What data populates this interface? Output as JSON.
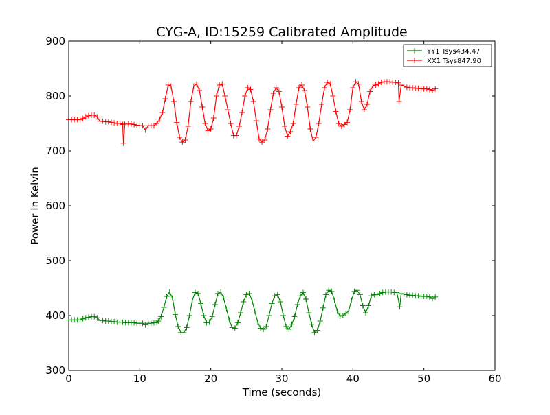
{
  "chart_data": {
    "type": "line",
    "title": "CYG-A, ID:15259 Calibrated Amplitude",
    "xlabel": "Time (seconds)",
    "ylabel": "Power in Kelvin",
    "xlim": [
      0,
      60
    ],
    "ylim": [
      300,
      900
    ],
    "xticks": [
      "0",
      "10",
      "20",
      "30",
      "40",
      "50",
      "60"
    ],
    "yticks": [
      "300",
      "400",
      "500",
      "600",
      "700",
      "800",
      "900"
    ],
    "grid": false,
    "legend_position": "top-right",
    "marker": "+",
    "series": [
      {
        "name": "YY1 Tsys434.47",
        "color": "#008000",
        "points": [
          [
            0,
            392
          ],
          [
            0.4,
            392
          ],
          [
            0.8,
            392
          ],
          [
            1.2,
            392
          ],
          [
            1.6,
            392
          ],
          [
            2.0,
            394
          ],
          [
            2.4,
            396
          ],
          [
            2.8,
            397
          ],
          [
            3.2,
            398
          ],
          [
            3.6,
            398
          ],
          [
            4.0,
            396
          ],
          [
            4.4,
            391
          ],
          [
            4.8,
            391
          ],
          [
            5.2,
            390
          ],
          [
            5.6,
            390
          ],
          [
            6.0,
            389
          ],
          [
            6.4,
            389
          ],
          [
            6.8,
            388
          ],
          [
            7.2,
            388
          ],
          [
            7.6,
            388
          ],
          [
            8.0,
            387
          ],
          [
            8.4,
            387
          ],
          [
            8.8,
            387
          ],
          [
            9.2,
            387
          ],
          [
            9.6,
            386
          ],
          [
            10.0,
            386
          ],
          [
            10.4,
            386
          ],
          [
            10.8,
            383
          ],
          [
            11.2,
            386
          ],
          [
            11.6,
            386
          ],
          [
            12.0,
            387
          ],
          [
            12.4,
            387
          ],
          [
            12.6,
            390
          ],
          [
            13.0,
            398
          ],
          [
            13.4,
            415
          ],
          [
            13.8,
            435
          ],
          [
            14.2,
            443
          ],
          [
            14.6,
            432
          ],
          [
            15.0,
            402
          ],
          [
            15.4,
            380
          ],
          [
            15.8,
            369
          ],
          [
            16.2,
            369
          ],
          [
            16.6,
            378
          ],
          [
            17.0,
            400
          ],
          [
            17.4,
            428
          ],
          [
            17.8,
            442
          ],
          [
            18.2,
            440
          ],
          [
            18.6,
            422
          ],
          [
            19.0,
            400
          ],
          [
            19.4,
            387
          ],
          [
            19.8,
            388
          ],
          [
            20.2,
            398
          ],
          [
            20.6,
            420
          ],
          [
            21.0,
            440
          ],
          [
            21.4,
            443
          ],
          [
            21.8,
            432
          ],
          [
            22.2,
            412
          ],
          [
            22.6,
            392
          ],
          [
            23.0,
            378
          ],
          [
            23.4,
            377
          ],
          [
            23.8,
            387
          ],
          [
            24.2,
            405
          ],
          [
            24.6,
            425
          ],
          [
            25.0,
            438
          ],
          [
            25.4,
            440
          ],
          [
            25.8,
            428
          ],
          [
            26.2,
            408
          ],
          [
            26.6,
            388
          ],
          [
            27.0,
            377
          ],
          [
            27.4,
            375
          ],
          [
            27.8,
            380
          ],
          [
            28.2,
            400
          ],
          [
            28.6,
            422
          ],
          [
            29.0,
            436
          ],
          [
            29.4,
            438
          ],
          [
            29.8,
            425
          ],
          [
            30.2,
            400
          ],
          [
            30.6,
            380
          ],
          [
            31.0,
            375
          ],
          [
            31.4,
            384
          ],
          [
            31.8,
            398
          ],
          [
            32.2,
            420
          ],
          [
            32.6,
            436
          ],
          [
            33.0,
            442
          ],
          [
            33.4,
            430
          ],
          [
            33.8,
            405
          ],
          [
            34.2,
            384
          ],
          [
            34.6,
            369
          ],
          [
            35.0,
            373
          ],
          [
            35.4,
            390
          ],
          [
            35.8,
            414
          ],
          [
            36.2,
            438
          ],
          [
            36.6,
            446
          ],
          [
            37.0,
            444
          ],
          [
            37.4,
            428
          ],
          [
            37.8,
            408
          ],
          [
            38.2,
            399
          ],
          [
            38.6,
            400
          ],
          [
            39.0,
            404
          ],
          [
            39.4,
            408
          ],
          [
            39.8,
            428
          ],
          [
            40.2,
            444
          ],
          [
            40.6,
            446
          ],
          [
            41.0,
            438
          ],
          [
            41.4,
            418
          ],
          [
            41.8,
            405
          ],
          [
            42.2,
            418
          ],
          [
            42.6,
            436
          ],
          [
            43.0,
            438
          ],
          [
            43.4,
            438
          ],
          [
            43.8,
            440
          ],
          [
            44.2,
            442
          ],
          [
            44.6,
            443
          ],
          [
            45.0,
            443
          ],
          [
            45.4,
            443
          ],
          [
            45.8,
            442
          ],
          [
            46.2,
            442
          ],
          [
            46.6,
            416
          ],
          [
            46.8,
            440
          ],
          [
            47.2,
            439
          ],
          [
            47.6,
            438
          ],
          [
            48.0,
            437
          ],
          [
            48.4,
            437
          ],
          [
            48.8,
            436
          ],
          [
            49.2,
            436
          ],
          [
            49.6,
            435
          ],
          [
            50.0,
            435
          ],
          [
            50.4,
            435
          ],
          [
            50.8,
            434
          ],
          [
            51.2,
            431
          ],
          [
            51.6,
            434
          ]
        ]
      },
      {
        "name": "XX1 Tsys847.90",
        "color": "#ff0000",
        "points": [
          [
            0,
            757
          ],
          [
            0.4,
            757
          ],
          [
            0.8,
            757
          ],
          [
            1.2,
            757
          ],
          [
            1.6,
            757
          ],
          [
            2.0,
            759
          ],
          [
            2.4,
            762
          ],
          [
            2.8,
            764
          ],
          [
            3.2,
            765
          ],
          [
            3.6,
            765
          ],
          [
            4.0,
            762
          ],
          [
            4.4,
            754
          ],
          [
            4.8,
            754
          ],
          [
            5.2,
            753
          ],
          [
            5.6,
            753
          ],
          [
            6.0,
            752
          ],
          [
            6.4,
            751
          ],
          [
            6.8,
            750
          ],
          [
            7.2,
            750
          ],
          [
            7.6,
            748
          ],
          [
            7.7,
            714
          ],
          [
            7.9,
            749
          ],
          [
            8.4,
            749
          ],
          [
            8.8,
            749
          ],
          [
            9.2,
            748
          ],
          [
            9.6,
            747
          ],
          [
            10.0,
            746
          ],
          [
            10.4,
            746
          ],
          [
            10.8,
            738
          ],
          [
            11.2,
            746
          ],
          [
            11.6,
            746
          ],
          [
            12.0,
            746
          ],
          [
            12.4,
            750
          ],
          [
            12.8,
            758
          ],
          [
            13.2,
            770
          ],
          [
            13.6,
            795
          ],
          [
            14.0,
            820
          ],
          [
            14.4,
            818
          ],
          [
            14.8,
            790
          ],
          [
            15.2,
            752
          ],
          [
            15.6,
            725
          ],
          [
            16.0,
            716
          ],
          [
            16.4,
            720
          ],
          [
            16.8,
            745
          ],
          [
            17.2,
            790
          ],
          [
            17.6,
            818
          ],
          [
            18.0,
            822
          ],
          [
            18.4,
            810
          ],
          [
            18.8,
            780
          ],
          [
            19.2,
            750
          ],
          [
            19.6,
            737
          ],
          [
            20.0,
            740
          ],
          [
            20.4,
            760
          ],
          [
            20.8,
            800
          ],
          [
            21.2,
            820
          ],
          [
            21.6,
            822
          ],
          [
            22.0,
            800
          ],
          [
            22.4,
            775
          ],
          [
            22.8,
            750
          ],
          [
            23.2,
            728
          ],
          [
            23.6,
            728
          ],
          [
            24.0,
            745
          ],
          [
            24.4,
            770
          ],
          [
            24.8,
            800
          ],
          [
            25.2,
            815
          ],
          [
            25.6,
            812
          ],
          [
            26.0,
            790
          ],
          [
            26.4,
            755
          ],
          [
            26.8,
            722
          ],
          [
            27.2,
            716
          ],
          [
            27.6,
            720
          ],
          [
            28.0,
            740
          ],
          [
            28.4,
            775
          ],
          [
            28.8,
            805
          ],
          [
            29.2,
            815
          ],
          [
            29.6,
            808
          ],
          [
            30.0,
            780
          ],
          [
            30.4,
            745
          ],
          [
            30.8,
            727
          ],
          [
            31.2,
            735
          ],
          [
            31.6,
            750
          ],
          [
            32.0,
            785
          ],
          [
            32.4,
            815
          ],
          [
            32.8,
            820
          ],
          [
            33.2,
            810
          ],
          [
            33.6,
            780
          ],
          [
            34.0,
            740
          ],
          [
            34.4,
            718
          ],
          [
            34.8,
            725
          ],
          [
            35.2,
            750
          ],
          [
            35.6,
            785
          ],
          [
            36.0,
            815
          ],
          [
            36.4,
            825
          ],
          [
            36.8,
            822
          ],
          [
            37.2,
            800
          ],
          [
            37.6,
            772
          ],
          [
            38.0,
            750
          ],
          [
            38.4,
            745
          ],
          [
            38.8,
            748
          ],
          [
            39.2,
            752
          ],
          [
            39.6,
            775
          ],
          [
            40.0,
            815
          ],
          [
            40.4,
            826
          ],
          [
            40.8,
            822
          ],
          [
            41.2,
            790
          ],
          [
            41.6,
            775
          ],
          [
            42.0,
            785
          ],
          [
            42.4,
            808
          ],
          [
            42.8,
            818
          ],
          [
            43.2,
            820
          ],
          [
            43.6,
            822
          ],
          [
            44.0,
            825
          ],
          [
            44.4,
            826
          ],
          [
            44.8,
            826
          ],
          [
            45.2,
            826
          ],
          [
            45.6,
            825
          ],
          [
            46.0,
            825
          ],
          [
            46.4,
            824
          ],
          [
            46.5,
            790
          ],
          [
            46.8,
            820
          ],
          [
            47.2,
            818
          ],
          [
            47.6,
            816
          ],
          [
            48.0,
            815
          ],
          [
            48.4,
            815
          ],
          [
            48.8,
            814
          ],
          [
            49.2,
            814
          ],
          [
            49.6,
            813
          ],
          [
            50.0,
            813
          ],
          [
            50.4,
            813
          ],
          [
            50.8,
            812
          ],
          [
            51.2,
            810
          ],
          [
            51.6,
            813
          ]
        ]
      }
    ]
  }
}
